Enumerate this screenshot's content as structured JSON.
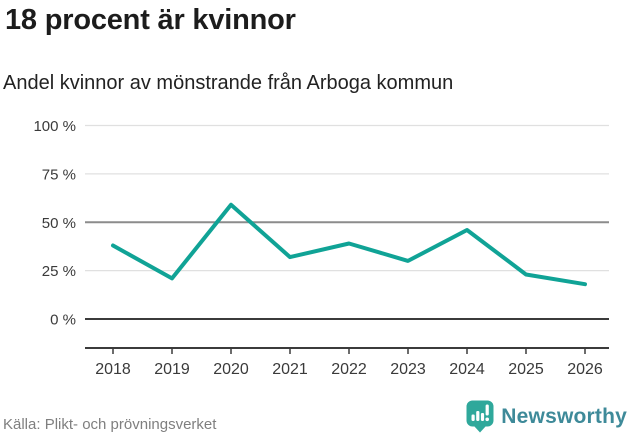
{
  "title": "18 procent är kvinnor",
  "subtitle": "Andel kvinnor av mönstrande från Arboga kommun",
  "footer": {
    "source": "Källa: Plikt- och prövningsverket"
  },
  "logo": {
    "text": "Newsworthy",
    "icon": "newsworthy-bar-chart-badge-icon"
  },
  "colors": {
    "line": "#10a396",
    "grid_light": "#e0e0e0",
    "grid_mid": "#8c8c8c",
    "axis_dark": "#3b3b3b",
    "label_text": "#3a3a3a",
    "logo_icon_teal": "#2fa89b",
    "logo_text_teal": "#3e8a99",
    "source_text": "#7f7f7f"
  },
  "chart_data": {
    "type": "line",
    "title": "18 procent är kvinnor",
    "subtitle": "Andel kvinnor av mönstrande från Arboga kommun",
    "x": [
      2018,
      2019,
      2020,
      2021,
      2022,
      2023,
      2024,
      2025,
      2026
    ],
    "series": [
      {
        "name": "Andel kvinnor av mönstrande",
        "values": [
          38,
          21,
          59,
          32,
          39,
          30,
          46,
          23,
          18
        ]
      }
    ],
    "unit": "%",
    "ylim": [
      0,
      100
    ],
    "ytick_values": [
      0,
      25,
      50,
      75,
      100
    ],
    "ytick_labels": [
      "0 %",
      "25 %",
      "50 %",
      "75 %",
      "100 %"
    ],
    "grid": true,
    "legend_position": "none",
    "emphasized_gridlines": [
      0,
      50
    ]
  }
}
